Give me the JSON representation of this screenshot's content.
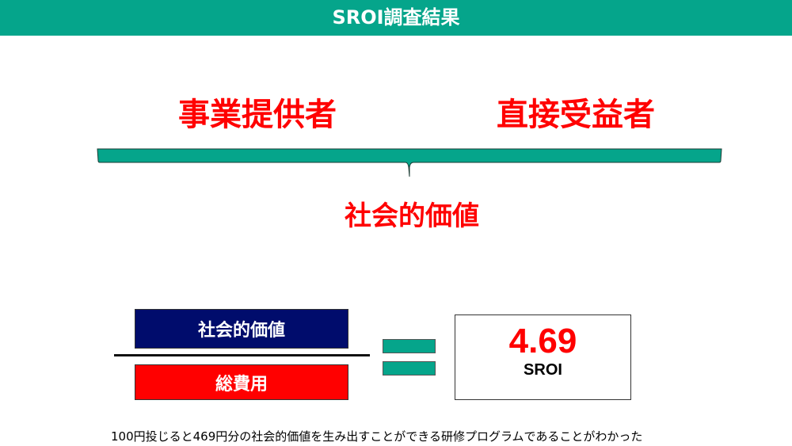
{
  "header": {
    "title": "SROI調査結果"
  },
  "stakeholders": [
    "事業提供者",
    "直接受益者"
  ],
  "result_label": "社会的価値",
  "formula": {
    "numerator": "社会的価値",
    "denominator": "総費用",
    "value": "4.69",
    "value_label": "SROI"
  },
  "caption": "100円投じると469円分の社会的価値を生み出すことができる研修プログラムであることがわかった",
  "colors": {
    "teal": "#05a58b",
    "red": "#ff0000",
    "navy": "#000c6c"
  }
}
